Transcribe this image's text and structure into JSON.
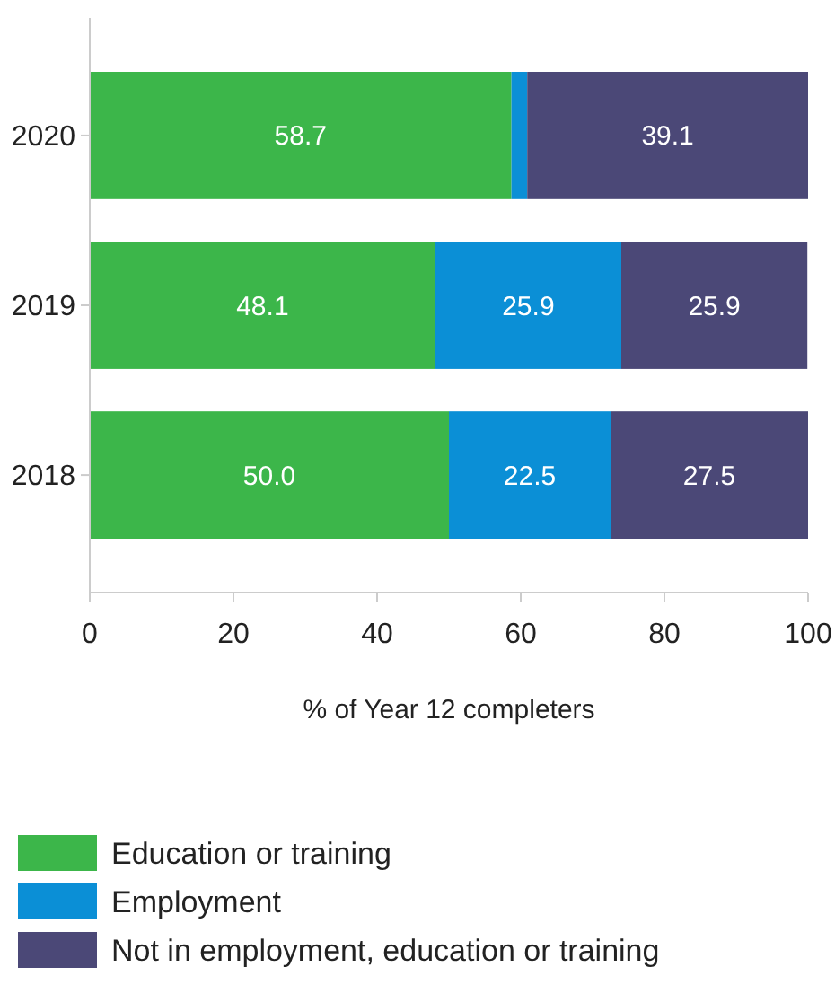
{
  "chart_data": {
    "type": "bar",
    "orientation": "horizontal",
    "stacked": true,
    "xlabel": "% of Year 12 completers",
    "categories": [
      "2020",
      "2019",
      "2018"
    ],
    "series": [
      {
        "name": "Education or training",
        "color": "#3cb64a",
        "values": [
          58.7,
          48.1,
          50.0
        ],
        "value_labels": [
          "58.7",
          "48.1",
          "50.0"
        ]
      },
      {
        "name": "Employment",
        "color": "#0b8fd6",
        "values": [
          2.2,
          25.9,
          22.5
        ],
        "value_labels": [
          null,
          "25.9",
          "22.5"
        ]
      },
      {
        "name": "Not in employment, education or training",
        "color": "#4b4877",
        "values": [
          39.1,
          25.9,
          27.5
        ],
        "value_labels": [
          "39.1",
          "25.9",
          "27.5"
        ]
      }
    ],
    "xlim": [
      0,
      100
    ],
    "xticks": [
      0,
      20,
      40,
      60,
      80,
      100
    ],
    "grid": false,
    "legend": "bottom left"
  }
}
